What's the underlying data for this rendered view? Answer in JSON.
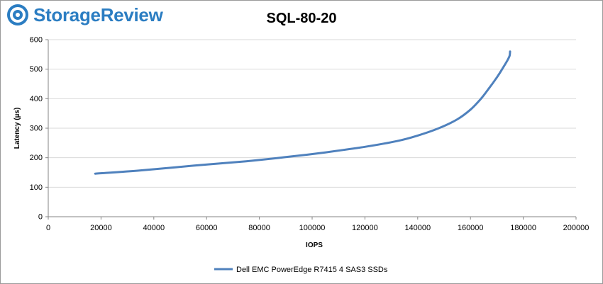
{
  "brand": {
    "name": "StorageReview",
    "color": "#2b7dc2"
  },
  "chart_data": {
    "type": "line",
    "title": "SQL-80-20",
    "xlabel": "IOPS",
    "ylabel": "Latency (µs)",
    "xlim": [
      0,
      200000
    ],
    "ylim": [
      0,
      600
    ],
    "xticks": [
      0,
      20000,
      40000,
      60000,
      80000,
      100000,
      120000,
      140000,
      160000,
      180000,
      200000
    ],
    "yticks": [
      0,
      100,
      200,
      300,
      400,
      500,
      600
    ],
    "grid": "horizontal",
    "legend": "bottom",
    "series": [
      {
        "name": "Dell EMC PowerEdge R7415 4 SAS3 SSDs",
        "color": "#4f81bd",
        "x": [
          17800,
          35000,
          55000,
          75000,
          90000,
          105000,
          120000,
          132000,
          140000,
          148000,
          155000,
          160000,
          164000,
          167000,
          170000,
          172000,
          174000,
          174800,
          175000
        ],
        "y": [
          146,
          157,
          173,
          188,
          202,
          218,
          237,
          256,
          275,
          300,
          330,
          363,
          400,
          435,
          472,
          500,
          530,
          545,
          560
        ]
      }
    ]
  }
}
